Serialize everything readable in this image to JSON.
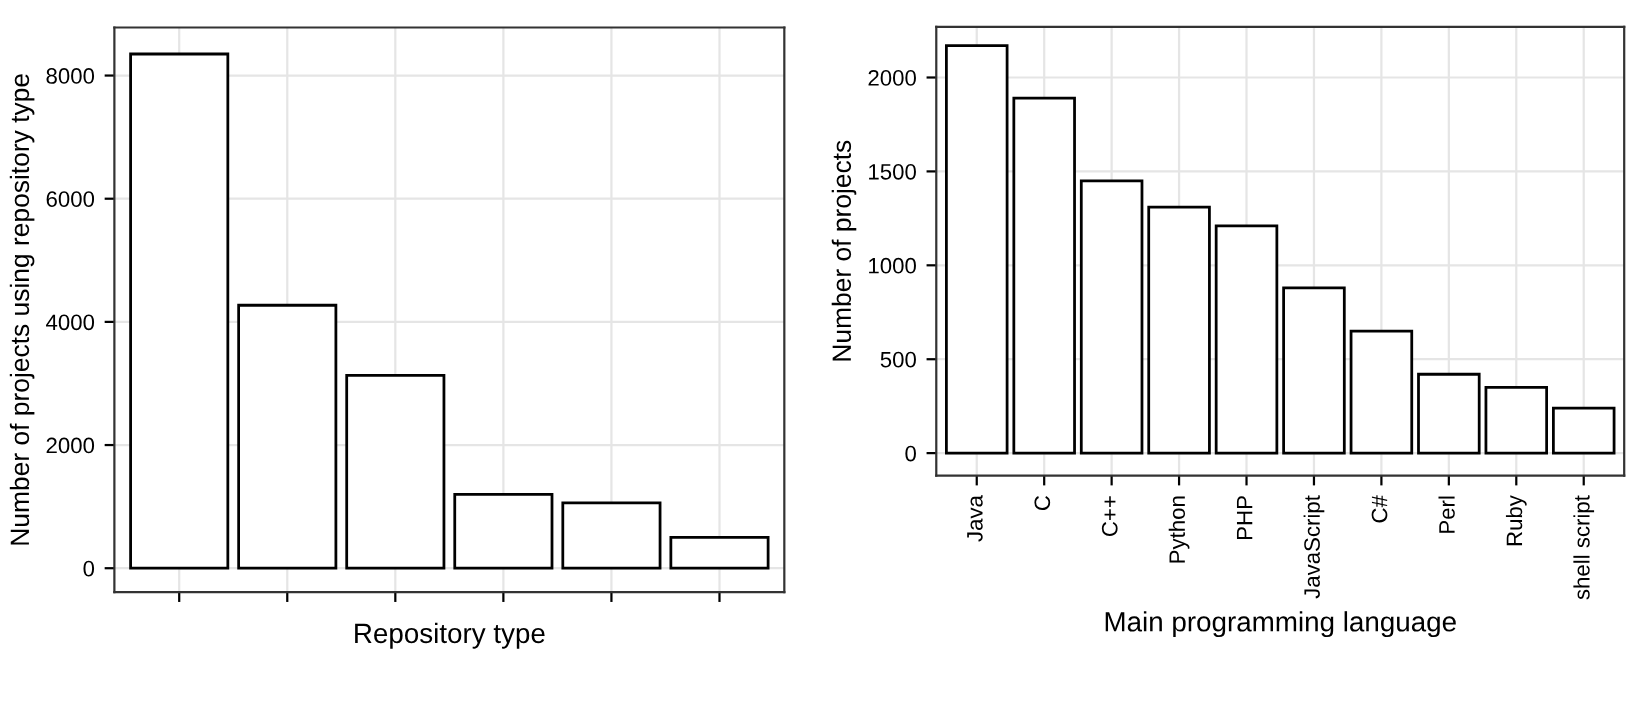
{
  "chart_data": [
    {
      "type": "bar",
      "xlabel": "Repository type",
      "ylabel": "Number of projects using repository type",
      "categories": [
        null,
        null,
        null,
        null,
        null,
        null
      ],
      "values": [
        8350,
        4270,
        3130,
        1200,
        1060,
        500
      ],
      "color": "#ffffff",
      "ylim": [
        -390,
        8780
      ],
      "yticks": [
        0,
        2000,
        4000,
        6000,
        8000
      ],
      "grid": true
    },
    {
      "type": "bar",
      "xlabel": "Main programming language",
      "ylabel": "Number of projects",
      "categories": [
        "Java",
        "C",
        "C++",
        "Python",
        "PHP",
        "JavaScript",
        "C#",
        "Perl",
        "Ruby",
        "shell script"
      ],
      "values": [
        2170,
        1890,
        1450,
        1310,
        1210,
        880,
        650,
        420,
        350,
        240
      ],
      "color": "#ffffff",
      "ylim": [
        -120,
        2270
      ],
      "yticks": [
        0,
        500,
        1000,
        1500,
        2000
      ],
      "grid": true
    }
  ]
}
